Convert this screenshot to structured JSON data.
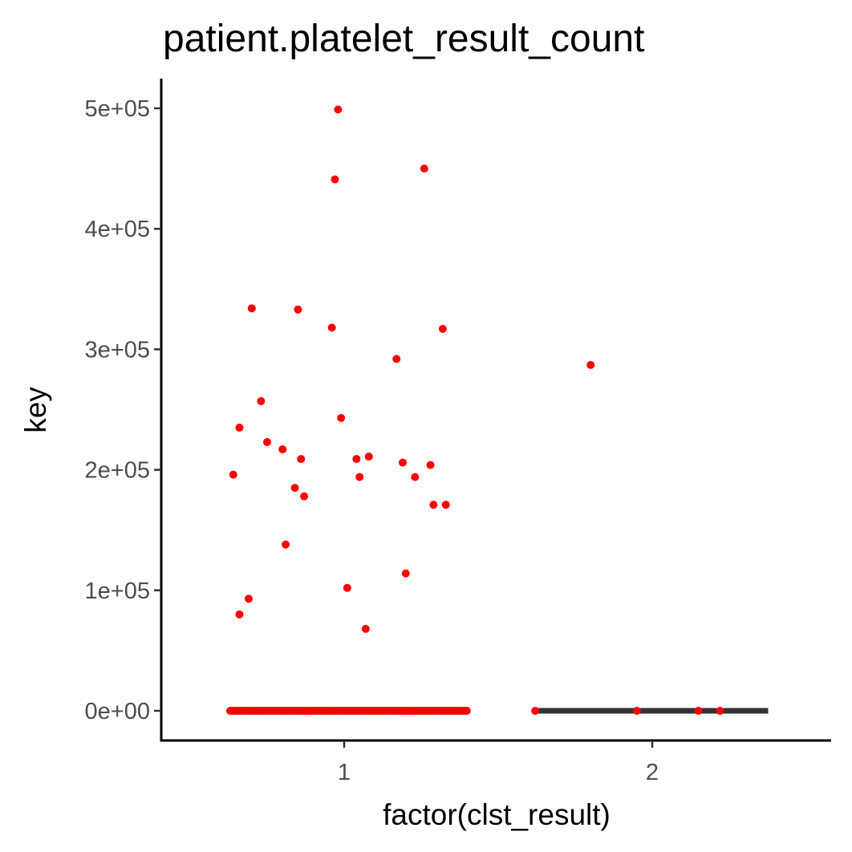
{
  "chart_data": {
    "type": "scatter",
    "title": "patient.platelet_result_count",
    "xlabel": "factor(clst_result)",
    "ylabel": "key",
    "categories": [
      "1",
      "2"
    ],
    "ylim": [
      -25000,
      525000
    ],
    "y_ticks": [
      0,
      100000,
      200000,
      300000,
      400000,
      500000
    ],
    "y_tick_labels": [
      "0e+00",
      "1e+05",
      "2e+05",
      "3e+05",
      "4e+05",
      "5e+05"
    ],
    "grid": false,
    "legend": "none",
    "colors": {
      "points": "#ff0000",
      "boxplot": "#333333",
      "axis": "#000000",
      "tick_labels": "#4d4d4d"
    },
    "boxplot": {
      "category": "2",
      "q1": 0,
      "median": 0,
      "q3": 0,
      "whisker_low": 0,
      "whisker_high": 0
    },
    "points": [
      {
        "x": 0.98,
        "y": 499000
      },
      {
        "x": 1.26,
        "y": 450000
      },
      {
        "x": 0.97,
        "y": 441000
      },
      {
        "x": 0.7,
        "y": 334000
      },
      {
        "x": 0.85,
        "y": 333000
      },
      {
        "x": 0.96,
        "y": 318000
      },
      {
        "x": 1.32,
        "y": 317000
      },
      {
        "x": 1.17,
        "y": 292000
      },
      {
        "x": 0.73,
        "y": 257000
      },
      {
        "x": 0.99,
        "y": 243000
      },
      {
        "x": 0.66,
        "y": 235000
      },
      {
        "x": 0.75,
        "y": 223000
      },
      {
        "x": 0.8,
        "y": 217000
      },
      {
        "x": 0.86,
        "y": 209000
      },
      {
        "x": 1.04,
        "y": 209000
      },
      {
        "x": 1.08,
        "y": 211000
      },
      {
        "x": 1.19,
        "y": 206000
      },
      {
        "x": 1.28,
        "y": 204000
      },
      {
        "x": 0.64,
        "y": 196000
      },
      {
        "x": 1.05,
        "y": 194000
      },
      {
        "x": 1.23,
        "y": 194000
      },
      {
        "x": 0.84,
        "y": 185000
      },
      {
        "x": 0.87,
        "y": 178000
      },
      {
        "x": 1.29,
        "y": 171000
      },
      {
        "x": 1.33,
        "y": 171000
      },
      {
        "x": 0.81,
        "y": 138000
      },
      {
        "x": 1.2,
        "y": 114000
      },
      {
        "x": 1.01,
        "y": 102000
      },
      {
        "x": 0.69,
        "y": 93000
      },
      {
        "x": 0.66,
        "y": 80000
      },
      {
        "x": 1.07,
        "y": 68000
      },
      {
        "x": 1.8,
        "y": 287000
      },
      {
        "x": 1.62,
        "y": 0
      },
      {
        "x": 1.95,
        "y": 0
      },
      {
        "x": 2.15,
        "y": 0
      },
      {
        "x": 2.22,
        "y": 0
      }
    ],
    "zero_strip": {
      "category": "1",
      "x_from": 0.63,
      "x_to": 1.4,
      "y": 0
    }
  }
}
